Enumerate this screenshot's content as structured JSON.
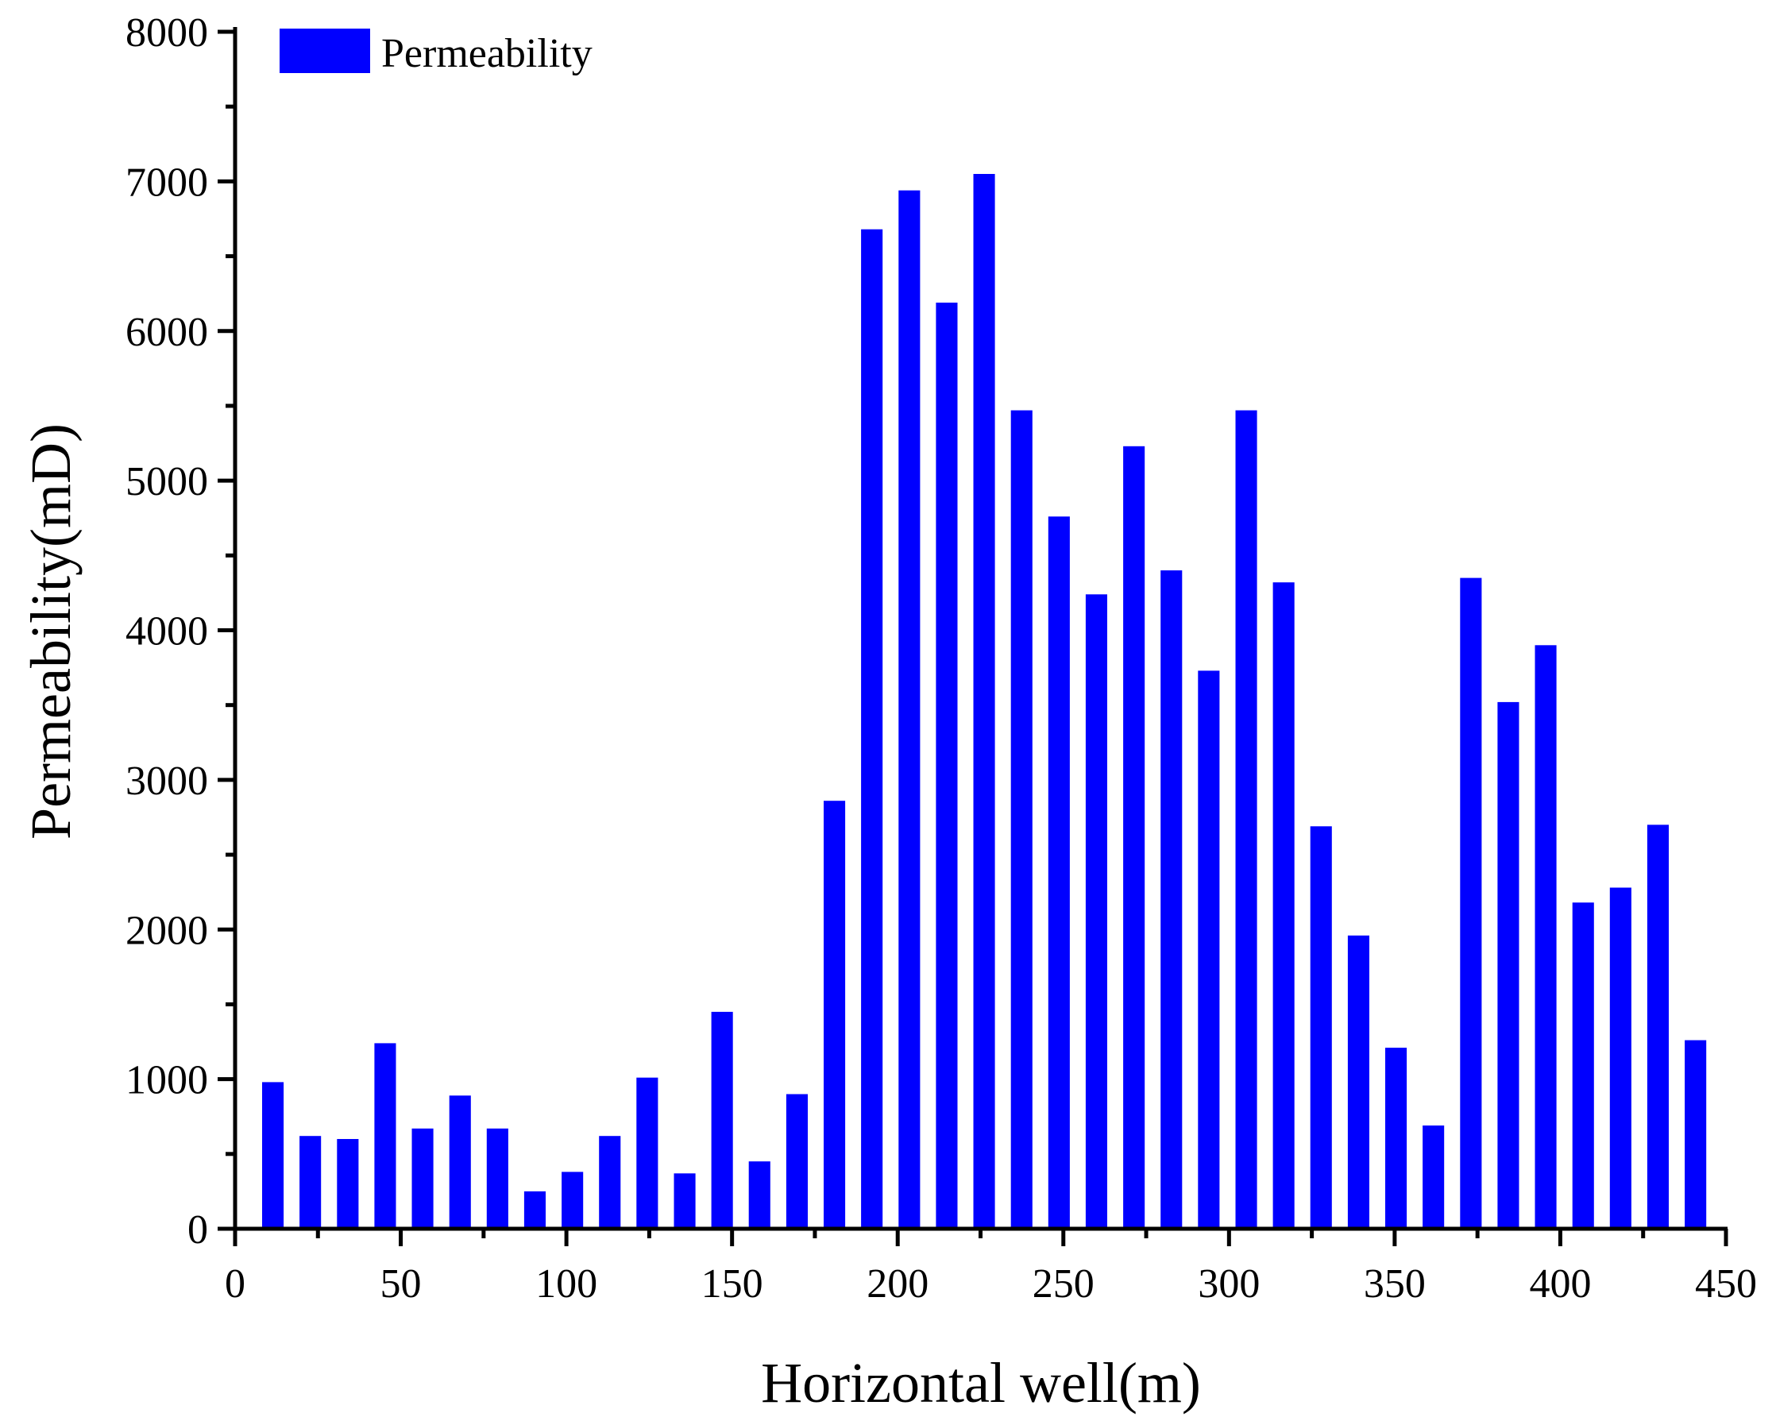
{
  "chart_data": {
    "type": "bar",
    "title": "",
    "xlabel": "Horizontal well(m)",
    "ylabel": "Permeability(mD)",
    "xlim": [
      0,
      450
    ],
    "ylim": [
      0,
      8000
    ],
    "xticks": [
      0,
      50,
      100,
      150,
      200,
      250,
      300,
      350,
      400,
      450
    ],
    "yticks": [
      0,
      1000,
      2000,
      3000,
      4000,
      5000,
      6000,
      7000,
      8000
    ],
    "grid": false,
    "legend": {
      "position": "top-left",
      "entries": [
        "Permeability"
      ]
    },
    "series": [
      {
        "name": "Permeability",
        "color": "#0000ff",
        "bar_width": 6.5,
        "x": [
          11.4,
          22.7,
          34.0,
          45.3,
          56.6,
          67.9,
          79.2,
          90.5,
          101.8,
          113.1,
          124.4,
          135.7,
          147.0,
          158.3,
          169.6,
          180.9,
          192.2,
          203.5,
          214.8,
          226.1,
          237.4,
          248.7,
          260.0,
          271.3,
          282.6,
          293.9,
          305.2,
          316.5,
          327.8,
          339.1,
          350.4,
          361.7,
          373.0,
          384.3,
          395.6,
          406.9,
          418.2,
          429.5,
          440.8
        ],
        "values": [
          980,
          620,
          600,
          1240,
          670,
          890,
          670,
          250,
          380,
          620,
          1010,
          370,
          1450,
          450,
          900,
          2860,
          6680,
          6940,
          6190,
          7050,
          5470,
          4760,
          4240,
          5230,
          4400,
          3730,
          5470,
          4320,
          2690,
          1960,
          1210,
          690,
          4350,
          3520,
          3900,
          2180,
          2280,
          2700,
          1260
        ]
      }
    ]
  }
}
